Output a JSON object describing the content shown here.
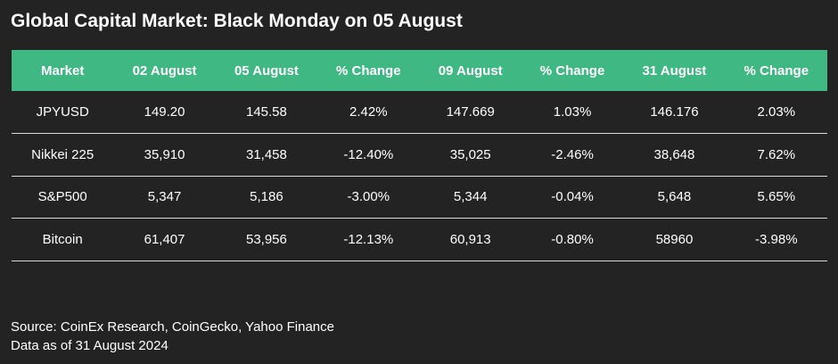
{
  "title": "Global Capital Market: Black Monday on 05 August",
  "chart_data": {
    "type": "table",
    "columns": [
      "Market",
      "02 August",
      "05 August",
      "% Change",
      "09 August",
      "% Change",
      "31 August",
      "% Change"
    ],
    "rows": [
      [
        "JPYUSD",
        "149.20",
        "145.58",
        "2.42%",
        "147.669",
        "1.03%",
        "146.176",
        "2.03%"
      ],
      [
        "Nikkei 225",
        "35,910",
        "31,458",
        "-12.40%",
        "35,025",
        "-2.46%",
        "38,648",
        "7.62%"
      ],
      [
        "S&P500",
        "5,347",
        "5,186",
        "-3.00%",
        "5,344",
        "-0.04%",
        "5,648",
        "5.65%"
      ],
      [
        "Bitcoin",
        "61,407",
        "53,956",
        "-12.13%",
        "60,913",
        "-0.80%",
        "58960",
        "-3.98%"
      ]
    ],
    "colors": {
      "header_bg": "#3fb883",
      "background": "#232323",
      "row_divider": "#d9d9d9",
      "text": "#ffffff"
    }
  },
  "source": {
    "line1": "Source: CoinEx Research, CoinGecko, Yahoo Finance",
    "line2": "Data as of 31 August 2024"
  }
}
